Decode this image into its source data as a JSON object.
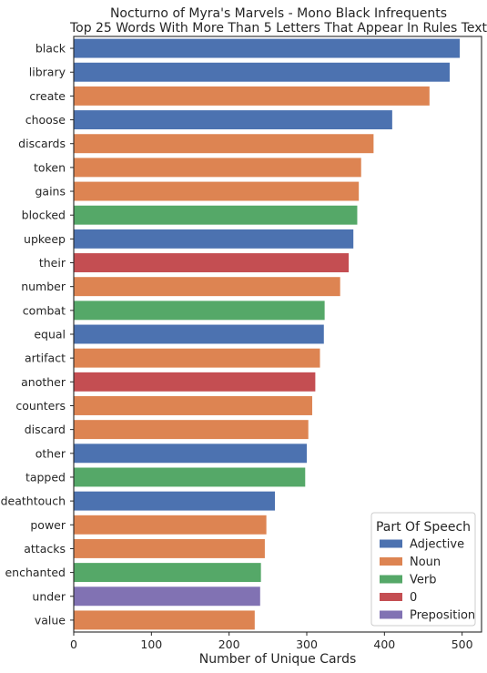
{
  "chart_data": {
    "type": "bar",
    "orientation": "horizontal",
    "title_line1": "Nocturno of Myra's Marvels - Mono Black Infrequents",
    "title_line2": "Top 25 Words With More Than 5 Letters That Appear In Rules Text",
    "xlabel": "Number of Unique Cards",
    "ylabel": "",
    "xlim": [
      0,
      525
    ],
    "xticks": [
      0,
      100,
      200,
      300,
      400,
      500
    ],
    "grid": false,
    "legend": {
      "title": "Part Of Speech",
      "position": "bottom-right",
      "entries": [
        {
          "label": "Adjective",
          "color": "#4c72b0"
        },
        {
          "label": "Noun",
          "color": "#dd8452"
        },
        {
          "label": "Verb",
          "color": "#55a868"
        },
        {
          "label": "0",
          "color": "#c44e52"
        },
        {
          "label": "Preposition",
          "color": "#8172b3"
        }
      ]
    },
    "categories": [
      "black",
      "library",
      "create",
      "choose",
      "discards",
      "token",
      "gains",
      "blocked",
      "upkeep",
      "their",
      "number",
      "combat",
      "equal",
      "artifact",
      "another",
      "counters",
      "discard",
      "other",
      "tapped",
      "deathtouch",
      "power",
      "attacks",
      "enchanted",
      "under",
      "value"
    ],
    "values": [
      497,
      484,
      458,
      410,
      386,
      370,
      367,
      365,
      360,
      354,
      343,
      323,
      322,
      317,
      311,
      307,
      302,
      300,
      298,
      259,
      248,
      246,
      241,
      240,
      233
    ],
    "parts_of_speech": [
      "Adjective",
      "Adjective",
      "Noun",
      "Adjective",
      "Noun",
      "Noun",
      "Noun",
      "Verb",
      "Adjective",
      "0",
      "Noun",
      "Verb",
      "Adjective",
      "Noun",
      "0",
      "Noun",
      "Noun",
      "Adjective",
      "Verb",
      "Adjective",
      "Noun",
      "Noun",
      "Verb",
      "Preposition",
      "Noun"
    ]
  }
}
